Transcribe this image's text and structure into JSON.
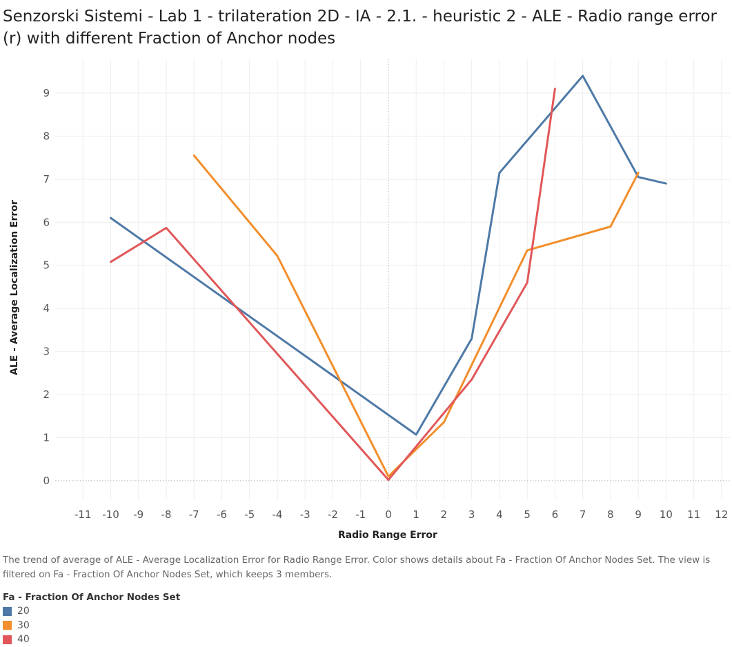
{
  "chart_data": {
    "type": "line",
    "title": "Senzorski Sistemi - Lab 1 - trilateration 2D - IA - 2.1. - heuristic 2 - ALE - Radio range error (r) with different Fraction of Anchor nodes",
    "xlabel": "Radio Range Error",
    "ylabel": "ALE - Average Localization Error",
    "xlim": [
      -12,
      12.3
    ],
    "ylim": [
      -0.45,
      9.8
    ],
    "x_ticks": [
      -11,
      -10,
      -9,
      -8,
      -7,
      -6,
      -5,
      -4,
      -3,
      -2,
      -1,
      0,
      1,
      2,
      3,
      4,
      5,
      6,
      7,
      8,
      9,
      10,
      11,
      12
    ],
    "y_ticks": [
      0,
      1,
      2,
      3,
      4,
      5,
      6,
      7,
      8,
      9
    ],
    "series": [
      {
        "name": "20",
        "color": "#4e79a7",
        "x": [
          -10,
          1,
          3,
          4,
          7,
          9,
          10
        ],
        "y": [
          6.1,
          1.07,
          3.3,
          7.15,
          9.4,
          7.05,
          6.9
        ]
      },
      {
        "name": "30",
        "color": "#f28e2b",
        "x": [
          -7,
          -4,
          0,
          2,
          5,
          8,
          9
        ],
        "y": [
          7.55,
          5.22,
          0.1,
          1.36,
          5.35,
          5.9,
          7.15
        ]
      },
      {
        "name": "40",
        "color": "#e15759",
        "x": [
          -10,
          -8,
          0,
          3,
          5,
          6
        ],
        "y": [
          5.08,
          5.87,
          0.02,
          2.35,
          4.6,
          9.1
        ]
      }
    ]
  },
  "caption": "The trend of average of ALE - Average Localization Error for Radio Range Error.  Color shows details about Fa - Fraction Of Anchor Nodes Set. The view is filtered on Fa - Fraction Of Anchor Nodes Set, which keeps 3 members.",
  "legend": {
    "title": "Fa - Fraction Of Anchor Nodes Set",
    "items": [
      {
        "label": "20",
        "color": "#4e79a7"
      },
      {
        "label": "30",
        "color": "#f28e2b"
      },
      {
        "label": "40",
        "color": "#e15759"
      }
    ]
  }
}
